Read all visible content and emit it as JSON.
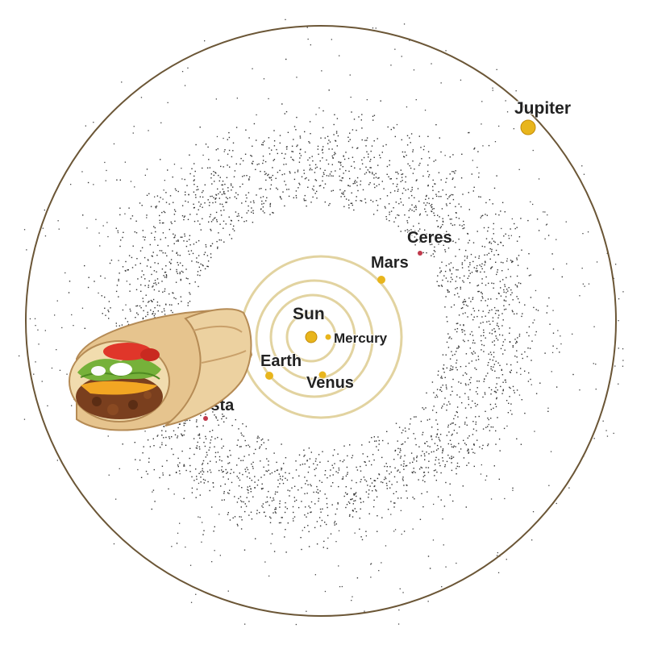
{
  "bodies": {
    "sun": "Sun",
    "mercury": "Mercury",
    "venus": "Venus",
    "earth": "Earth",
    "mars": "Mars",
    "ceres": "Ceres",
    "jupiter": "Jupiter",
    "vesta": "Vesta"
  },
  "colors": {
    "planet": "#e8b51c",
    "orbit_inner": "#e2d3a0",
    "orbit_outer": "#6b5636",
    "asteroid": "#333333",
    "minor_planet": "#c0394b"
  },
  "icons": {
    "overlay": "burrito-icon"
  }
}
